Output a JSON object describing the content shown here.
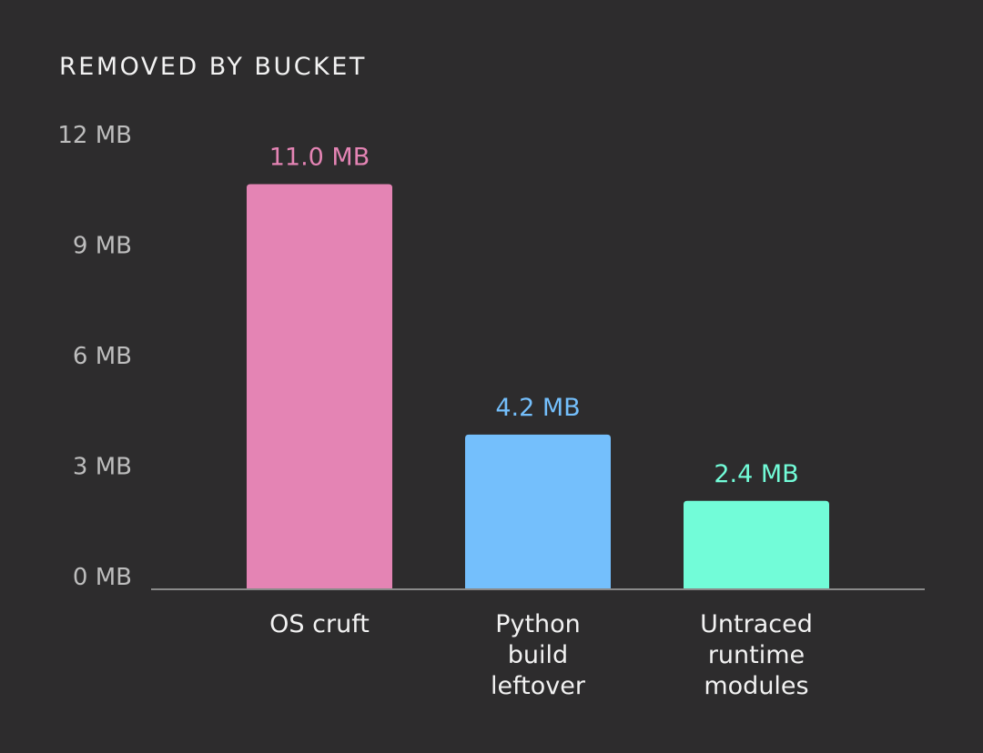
{
  "chart_data": {
    "type": "bar",
    "title": "REMOVED BY BUCKET",
    "xlabel": "",
    "ylabel": "",
    "ylim": [
      0,
      12
    ],
    "yticks": [
      0,
      3,
      6,
      9,
      12
    ],
    "ytick_labels": [
      "0 MB",
      "3 MB",
      "6 MB",
      "9 MB",
      "12 MB"
    ],
    "unit": "MB",
    "grid": false,
    "categories": [
      [
        "OS cruft"
      ],
      [
        "Python",
        "build",
        "leftover"
      ],
      [
        "Untraced",
        "runtime",
        "modules"
      ]
    ],
    "values": [
      11.0,
      4.2,
      2.4
    ],
    "data_labels": [
      "11.0 MB",
      "4.2 MB",
      "2.4 MB"
    ],
    "colors": [
      "#e484b4",
      "#74bffc",
      "#72fcd8"
    ],
    "background": "#2d2c2d"
  }
}
